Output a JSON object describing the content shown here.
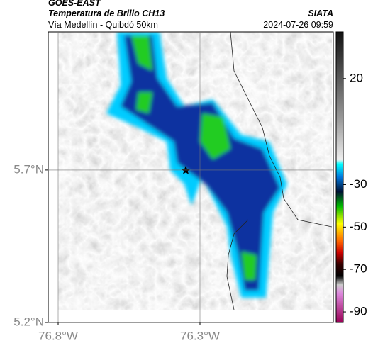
{
  "header": {
    "title": "GOES-EAST",
    "subtitle": "Temperatura de Brillo CH13",
    "location": "Vía Medellín - Quibdó 50km",
    "source": "SIATA",
    "datetime": "2024-07-26 09:59"
  },
  "map": {
    "xlim": [
      -76.835,
      -75.83
    ],
    "ylim": [
      5.2,
      6.153
    ],
    "xticks": [
      {
        "value": -76.8,
        "label": "76.8°W"
      },
      {
        "value": -76.3,
        "label": "76.3°W"
      }
    ],
    "yticks": [
      {
        "value": 5.7,
        "label": "5.7°N"
      },
      {
        "value": 5.2,
        "label": "5.2°N"
      }
    ]
  },
  "colorbar": {
    "lim": [
      42,
      -95
    ],
    "ticks": [
      20,
      -30,
      -50,
      -70,
      -90
    ]
  }
}
